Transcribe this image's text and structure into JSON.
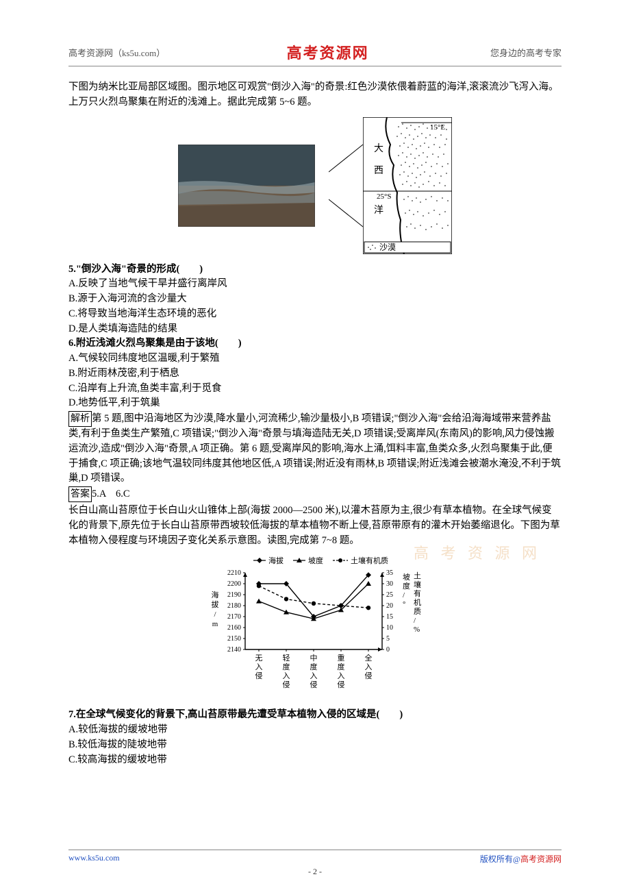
{
  "header": {
    "left": "高考资源网（ks5u.com）",
    "center": "高考资源网",
    "right": "您身边的高考专家"
  },
  "intro1": "下图为纳米比亚局部区域图。图示地区可观赏\"倒沙入海\"的奇景:红色沙漠依偎着蔚蓝的海洋,滚滚流沙飞泻入海。上万只火烈鸟聚集在附近的浅滩上。据此完成第 5~6 题。",
  "map": {
    "lon_label": "15°E",
    "lat_label": "25°S",
    "ocean_labels": [
      "大",
      "西",
      "洋"
    ],
    "legend": "沙漠"
  },
  "q5": {
    "stem": "5.\"倒沙入海\"奇景的形成(　　)",
    "A": "A.反映了当地气候干旱并盛行离岸风",
    "B": "B.源于入海河流的含沙量大",
    "C": "C.将导致当地海洋生态环境的恶化",
    "D": "D.是人类填海造陆的结果"
  },
  "q6": {
    "stem": "6.附近浅滩火烈鸟聚集是由于该地(　　)",
    "A": "A.气候较同纬度地区温暖,利于繁殖",
    "B": "B.附近雨林茂密,利于栖息",
    "C": "C.沿岸有上升流,鱼类丰富,利于觅食",
    "D": "D.地势低平,利于筑巢"
  },
  "analysis": {
    "label": "解析",
    "text": "第 5 题,图中沿海地区为沙漠,降水量小,河流稀少,输沙量极小,B 项错误;\"倒沙入海\"会给沿海海域带来营养盐类,有利于鱼类生产繁殖,C 项错误;\"倒沙入海\"奇景与填海造陆无关,D 项错误;受离岸风(东南风)的影响,风力侵蚀搬运流沙,造成\"倒沙入海\"奇景,A 项正确。第 6 题,受离岸风的影响,海水上涌,饵料丰富,鱼类众多,火烈鸟聚集于此,便于捕食,C 项正确;该地气温较同纬度其他地区低,A 项错误;附近没有雨林,B 项错误;附近浅滩会被潮水淹没,不利于筑巢,D 项错误。"
  },
  "answer": {
    "label": "答案",
    "text": "5.A　6.C"
  },
  "intro2": "长白山高山苔原位于长白山火山锥体上部(海拔 2000—2500 米),以灌木苔原为主,很少有草本植物。在全球气候变化的背景下,原先位于长白山苔原带西坡较低海拔的草本植物不断上侵,苔原带原有的灌木开始萎缩退化。下图为草本植物入侵程度与环境因子变化关系示意图。读图,完成第 7~8 题。",
  "chart": {
    "legend": [
      "海拔",
      "坡度",
      "土壤有机质"
    ],
    "y_left_label": "海拔/m",
    "y_right_label_top": "坡度/°",
    "y_right_label_bottom": "土壤有机质/%",
    "y_left_ticks": [
      2140,
      2150,
      2160,
      2170,
      2180,
      2190,
      2200,
      2210
    ],
    "y_right_ticks": [
      0,
      5,
      10,
      15,
      20,
      25,
      30,
      35
    ],
    "x_categories": [
      "无入侵",
      "轻度入侵",
      "中度入侵",
      "重度入侵",
      "全入侵"
    ],
    "series": {
      "altitude": [
        2200,
        2200,
        2170,
        2180,
        2208
      ],
      "slope": [
        22,
        17,
        14,
        18,
        30
      ],
      "organic": [
        29,
        23,
        21,
        20,
        19
      ]
    },
    "colors": {
      "line": "#000000",
      "bg": "#ffffff",
      "text": "#000000"
    }
  },
  "q7": {
    "stem": "7.在全球气候变化的背景下,高山苔原带最先遭受草本植物入侵的区域是(　　)",
    "A": "A.较低海拔的缓坡地带",
    "B": "B.较低海拔的陡坡地带",
    "C": "C.较高海拔的缓坡地带"
  },
  "footer": {
    "left": "www.ks5u.com",
    "right_prefix": "版权所有@",
    "right_red": "高考资源网",
    "page": "- 2 -"
  },
  "watermark": "高 考 资 源 网"
}
